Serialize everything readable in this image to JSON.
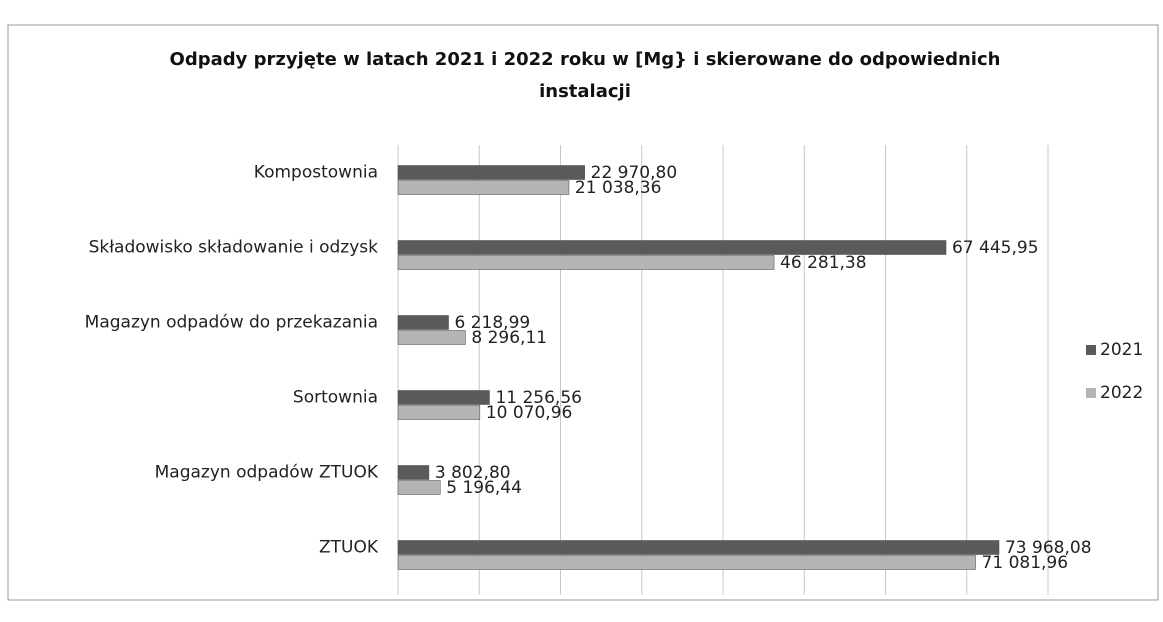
{
  "chart_data": {
    "type": "hbar",
    "title": "Odpady przyjęte w latach 2021 i 2022 roku w [Mg} i skierowane do odpowiednich instalacji",
    "categories": [
      "Kompostownia",
      "Składowisko składowanie i odzysk",
      "Magazyn odpadów do przekazania",
      "Sortownia",
      "Magazyn odpadów ZTUOK",
      "ZTUOK"
    ],
    "series": [
      {
        "name": "2021",
        "color": "#5a5a5a",
        "values": [
          22970.8,
          67445.95,
          6218.99,
          11256.56,
          3802.8,
          73968.08
        ],
        "value_labels": [
          "22 970,80",
          "67 445,95",
          "6 218,99",
          "11 256,56",
          "3 802,80",
          "73 968,08"
        ]
      },
      {
        "name": "2022",
        "color": "#b4b4b4",
        "values": [
          21038.36,
          46281.38,
          8296.11,
          10070.96,
          5196.44,
          71081.96
        ],
        "value_labels": [
          "21 038,36",
          "46 281,38",
          "8 296,11",
          "10 070,96",
          "5 196,44",
          "71 081,96"
        ]
      }
    ],
    "xlim": [
      0,
      80000
    ],
    "xticks": [
      0,
      10000,
      20000,
      30000,
      40000,
      50000,
      60000,
      70000,
      80000
    ],
    "tick_labels": false,
    "grid": true,
    "legend": "right"
  }
}
